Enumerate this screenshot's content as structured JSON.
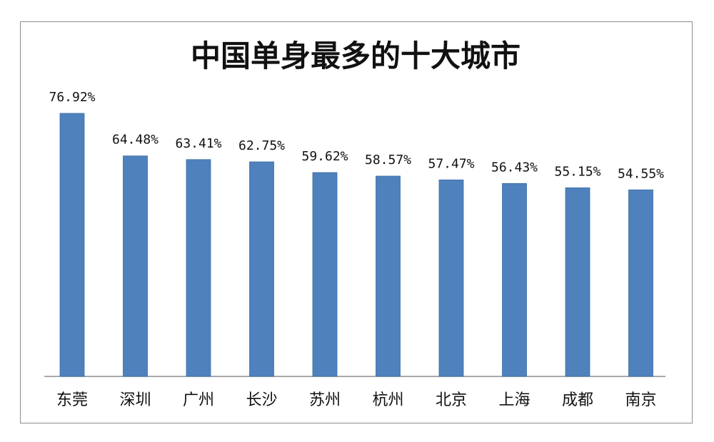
{
  "chart_data": {
    "type": "bar",
    "title": "中国单身最多的十大城市",
    "xlabel": "",
    "ylabel": "",
    "categories": [
      "东莞",
      "深圳",
      "广州",
      "长沙",
      "苏州",
      "杭州",
      "北京",
      "上海",
      "成都",
      "南京"
    ],
    "values": [
      76.92,
      64.48,
      63.41,
      62.75,
      59.62,
      58.57,
      57.47,
      56.43,
      55.15,
      54.55
    ],
    "value_labels": [
      "76.92%",
      "64.48%",
      "63.41%",
      "62.75%",
      "59.62%",
      "58.57%",
      "57.47%",
      "56.43%",
      "55.15%",
      "54.55%"
    ],
    "ylim": [
      0,
      76.92
    ],
    "grid": false,
    "legend": "none",
    "bar_color": "#4f81bd",
    "axis_color": "#8c8c8c"
  }
}
